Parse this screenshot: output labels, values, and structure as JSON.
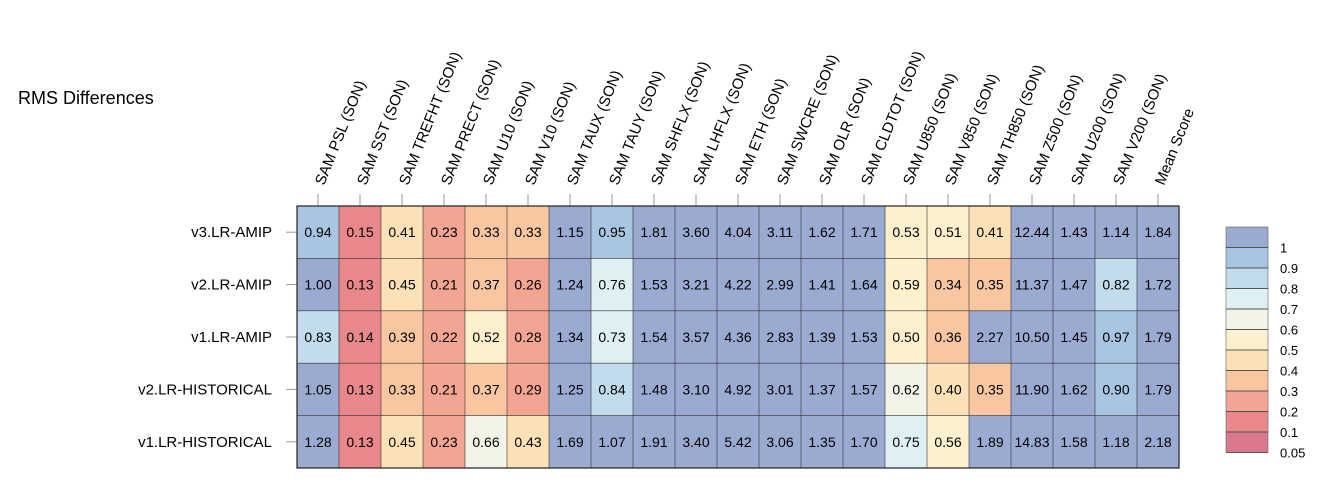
{
  "chart_data": {
    "type": "heatmap",
    "title": "RMS Differences",
    "columns": [
      "SAM PSL (SON)",
      "SAM SST (SON)",
      "SAM TREFHT (SON)",
      "SAM PRECT (SON)",
      "SAM U10 (SON)",
      "SAM V10 (SON)",
      "SAM TAUX (SON)",
      "SAM TAUY (SON)",
      "SAM SHFLX (SON)",
      "SAM LHFLX (SON)",
      "SAM ETH (SON)",
      "SAM SWCRE (SON)",
      "SAM OLR (SON)",
      "SAM CLDTOT (SON)",
      "SAM U850 (SON)",
      "SAM V850 (SON)",
      "SAM TH850 (SON)",
      "SAM Z500 (SON)",
      "SAM U200 (SON)",
      "SAM V200 (SON)",
      "Mean Score"
    ],
    "rows": [
      "v3.LR-AMIP",
      "v2.LR-AMIP",
      "v1.LR-AMIP",
      "v2.LR-HISTORICAL",
      "v1.LR-HISTORICAL"
    ],
    "values": [
      [
        "0.94",
        "0.15",
        "0.41",
        "0.23",
        "0.33",
        "0.33",
        "1.15",
        "0.95",
        "1.81",
        "3.60",
        "4.04",
        "3.11",
        "1.62",
        "1.71",
        "0.53",
        "0.51",
        "0.41",
        "12.44",
        "1.43",
        "1.14",
        "1.84"
      ],
      [
        "1.00",
        "0.13",
        "0.45",
        "0.21",
        "0.37",
        "0.26",
        "1.24",
        "0.76",
        "1.53",
        "3.21",
        "4.22",
        "2.99",
        "1.41",
        "1.64",
        "0.59",
        "0.34",
        "0.35",
        "11.37",
        "1.47",
        "0.82",
        "1.72"
      ],
      [
        "0.83",
        "0.14",
        "0.39",
        "0.22",
        "0.52",
        "0.28",
        "1.34",
        "0.73",
        "1.54",
        "3.57",
        "4.36",
        "2.83",
        "1.39",
        "1.53",
        "0.50",
        "0.36",
        "2.27",
        "10.50",
        "1.45",
        "0.97",
        "1.79"
      ],
      [
        "1.05",
        "0.13",
        "0.33",
        "0.21",
        "0.37",
        "0.29",
        "1.25",
        "0.84",
        "1.48",
        "3.10",
        "4.92",
        "3.01",
        "1.37",
        "1.57",
        "0.62",
        "0.40",
        "0.35",
        "11.90",
        "1.62",
        "0.90",
        "1.79"
      ],
      [
        "1.28",
        "0.13",
        "0.45",
        "0.23",
        "0.66",
        "0.43",
        "1.69",
        "1.07",
        "1.91",
        "3.40",
        "5.42",
        "3.06",
        "1.35",
        "1.70",
        "0.75",
        "0.56",
        "1.89",
        "14.83",
        "1.58",
        "1.18",
        "2.18"
      ]
    ],
    "colorbar": {
      "labels": [
        "1",
        "0.9",
        "0.8",
        "0.7",
        "0.6",
        "0.5",
        "0.4",
        "0.3",
        "0.2",
        "0.1",
        "0.05"
      ],
      "colors": [
        "#9aaad1",
        "#a8c5e1",
        "#c2dceb",
        "#dff0f3",
        "#f3f3e8",
        "#fdf0cc",
        "#fde1b6",
        "#f9c6a2",
        "#f2a593",
        "#e8888a",
        "#d87a8c"
      ],
      "bounds": [
        1,
        0.9,
        0.8,
        0.7,
        0.6,
        0.5,
        0.4,
        0.3,
        0.2,
        0.1,
        0.05
      ]
    },
    "legend_position": "right"
  }
}
